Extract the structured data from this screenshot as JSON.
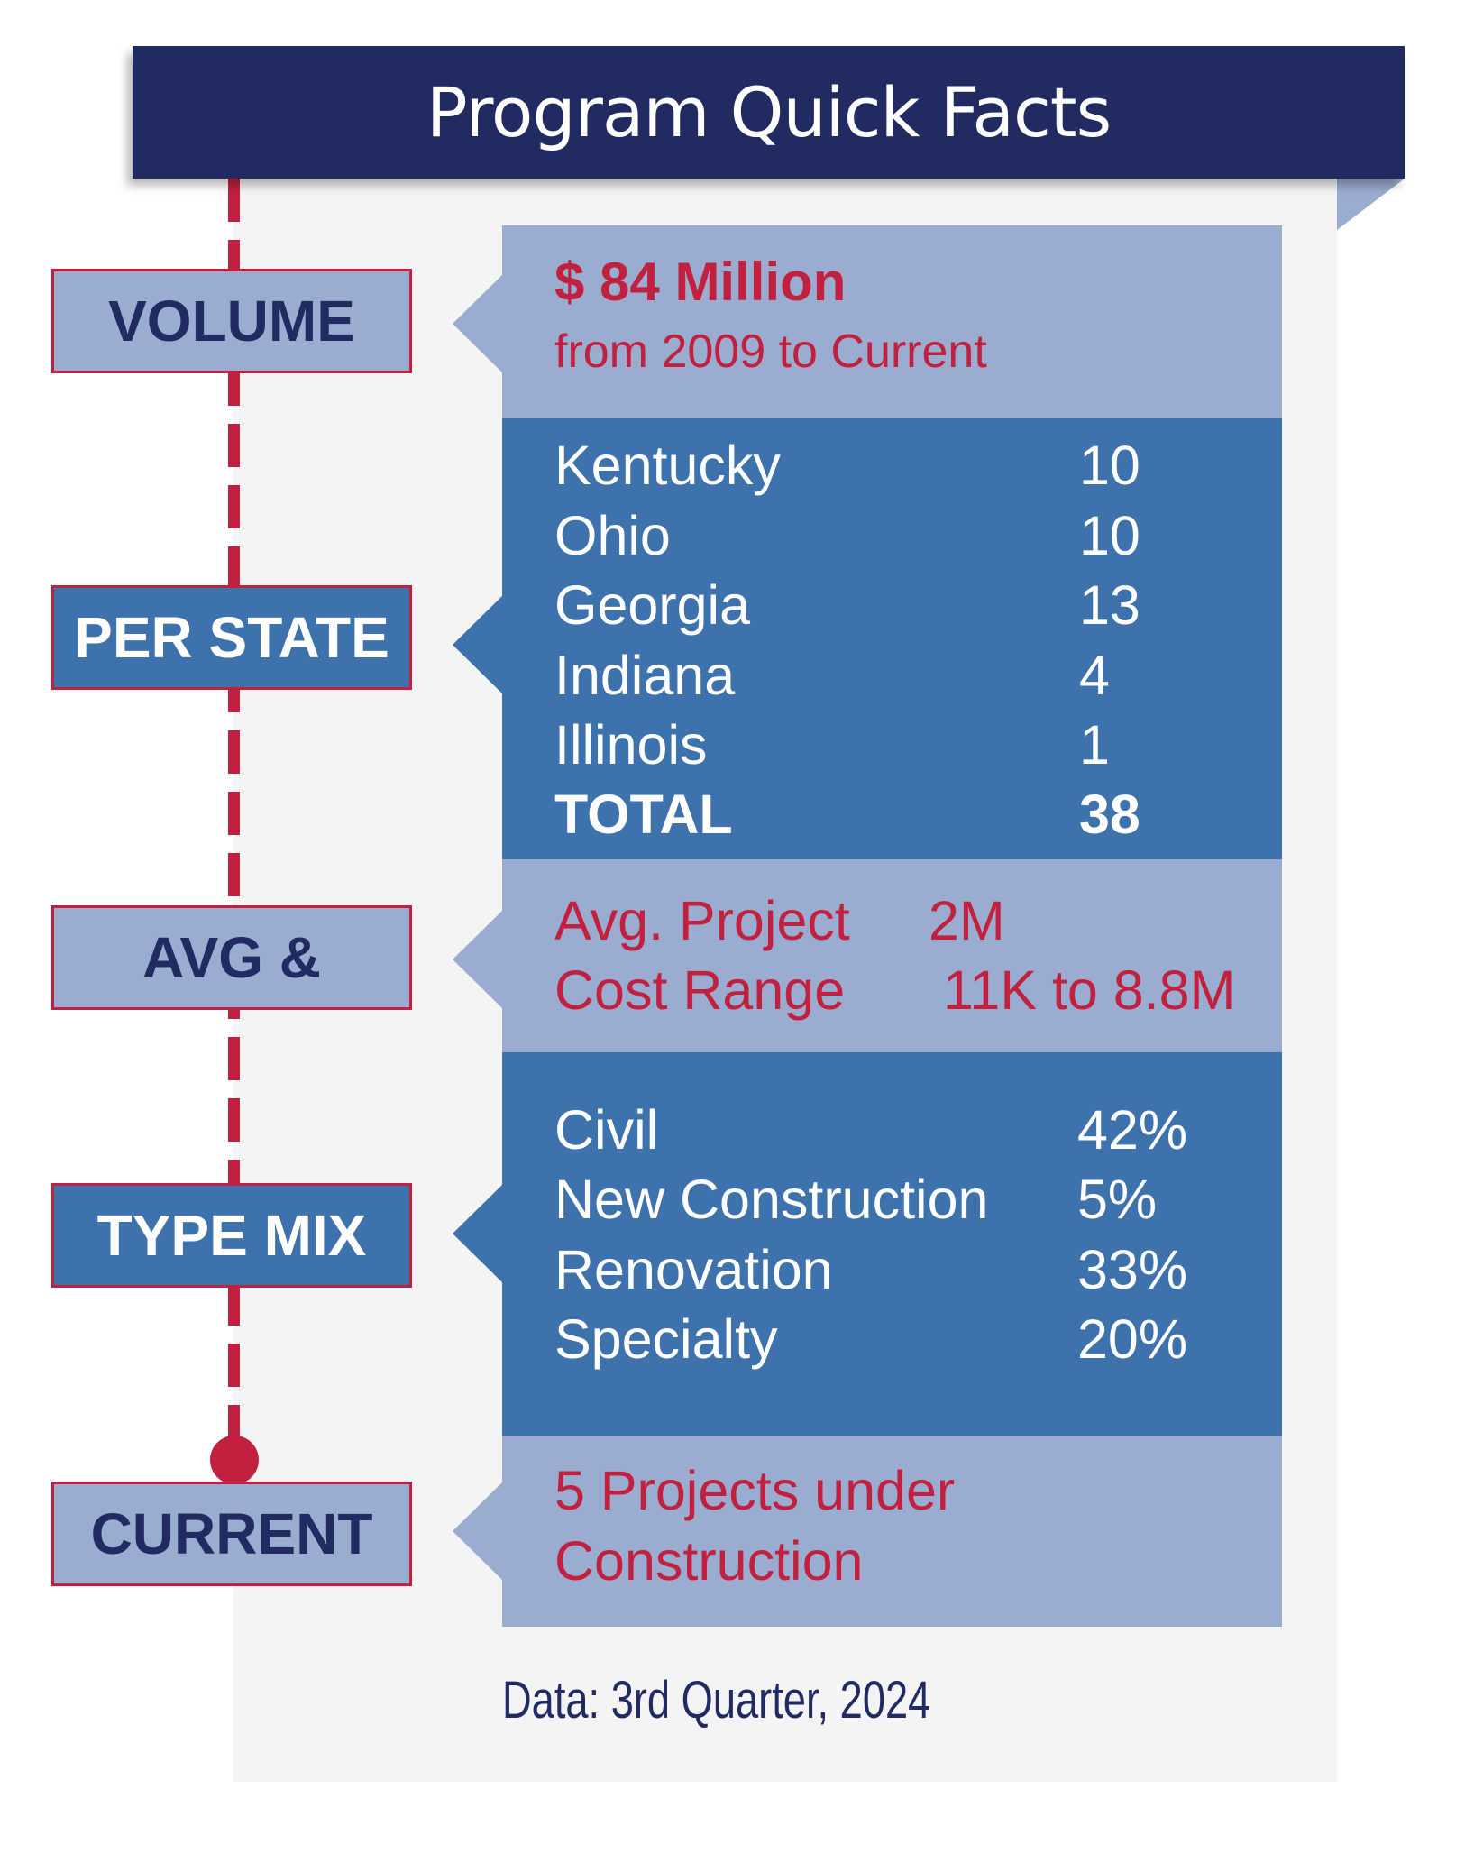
{
  "title": "Program Quick Facts",
  "colors": {
    "navy": "#212b62",
    "red": "#c1203f",
    "light_blue": "#9aaccf",
    "mid_blue": "#3d72ac"
  },
  "sections": {
    "volume": {
      "label": "VOLUME",
      "amount": "$ 84 Million",
      "range": "from 2009 to Current"
    },
    "per_state": {
      "label": "PER STATE",
      "rows": [
        {
          "name": "Kentucky",
          "value": "10"
        },
        {
          "name": "Ohio",
          "value": "10"
        },
        {
          "name": "Georgia",
          "value": "13"
        },
        {
          "name": "Indiana",
          "value": "4"
        },
        {
          "name": "Illinois",
          "value": "1"
        }
      ],
      "total": {
        "name": "TOTAL",
        "value": "38"
      }
    },
    "avg": {
      "label": "AVG &",
      "rows": [
        {
          "name": "Avg. Project",
          "value": "2M"
        },
        {
          "name": "Cost Range",
          "value": "11K to 8.8M"
        }
      ]
    },
    "type_mix": {
      "label": "TYPE MIX",
      "rows": [
        {
          "name": "Civil",
          "value": "42%"
        },
        {
          "name": "New Construction",
          "value": "5%"
        },
        {
          "name": "Renovation",
          "value": "33%"
        },
        {
          "name": "Specialty",
          "value": "20%"
        }
      ]
    },
    "current": {
      "label": "CURRENT",
      "line1": "5 Projects under",
      "line2": "Construction"
    }
  },
  "footnote": "Data: 3rd Quarter, 2024"
}
